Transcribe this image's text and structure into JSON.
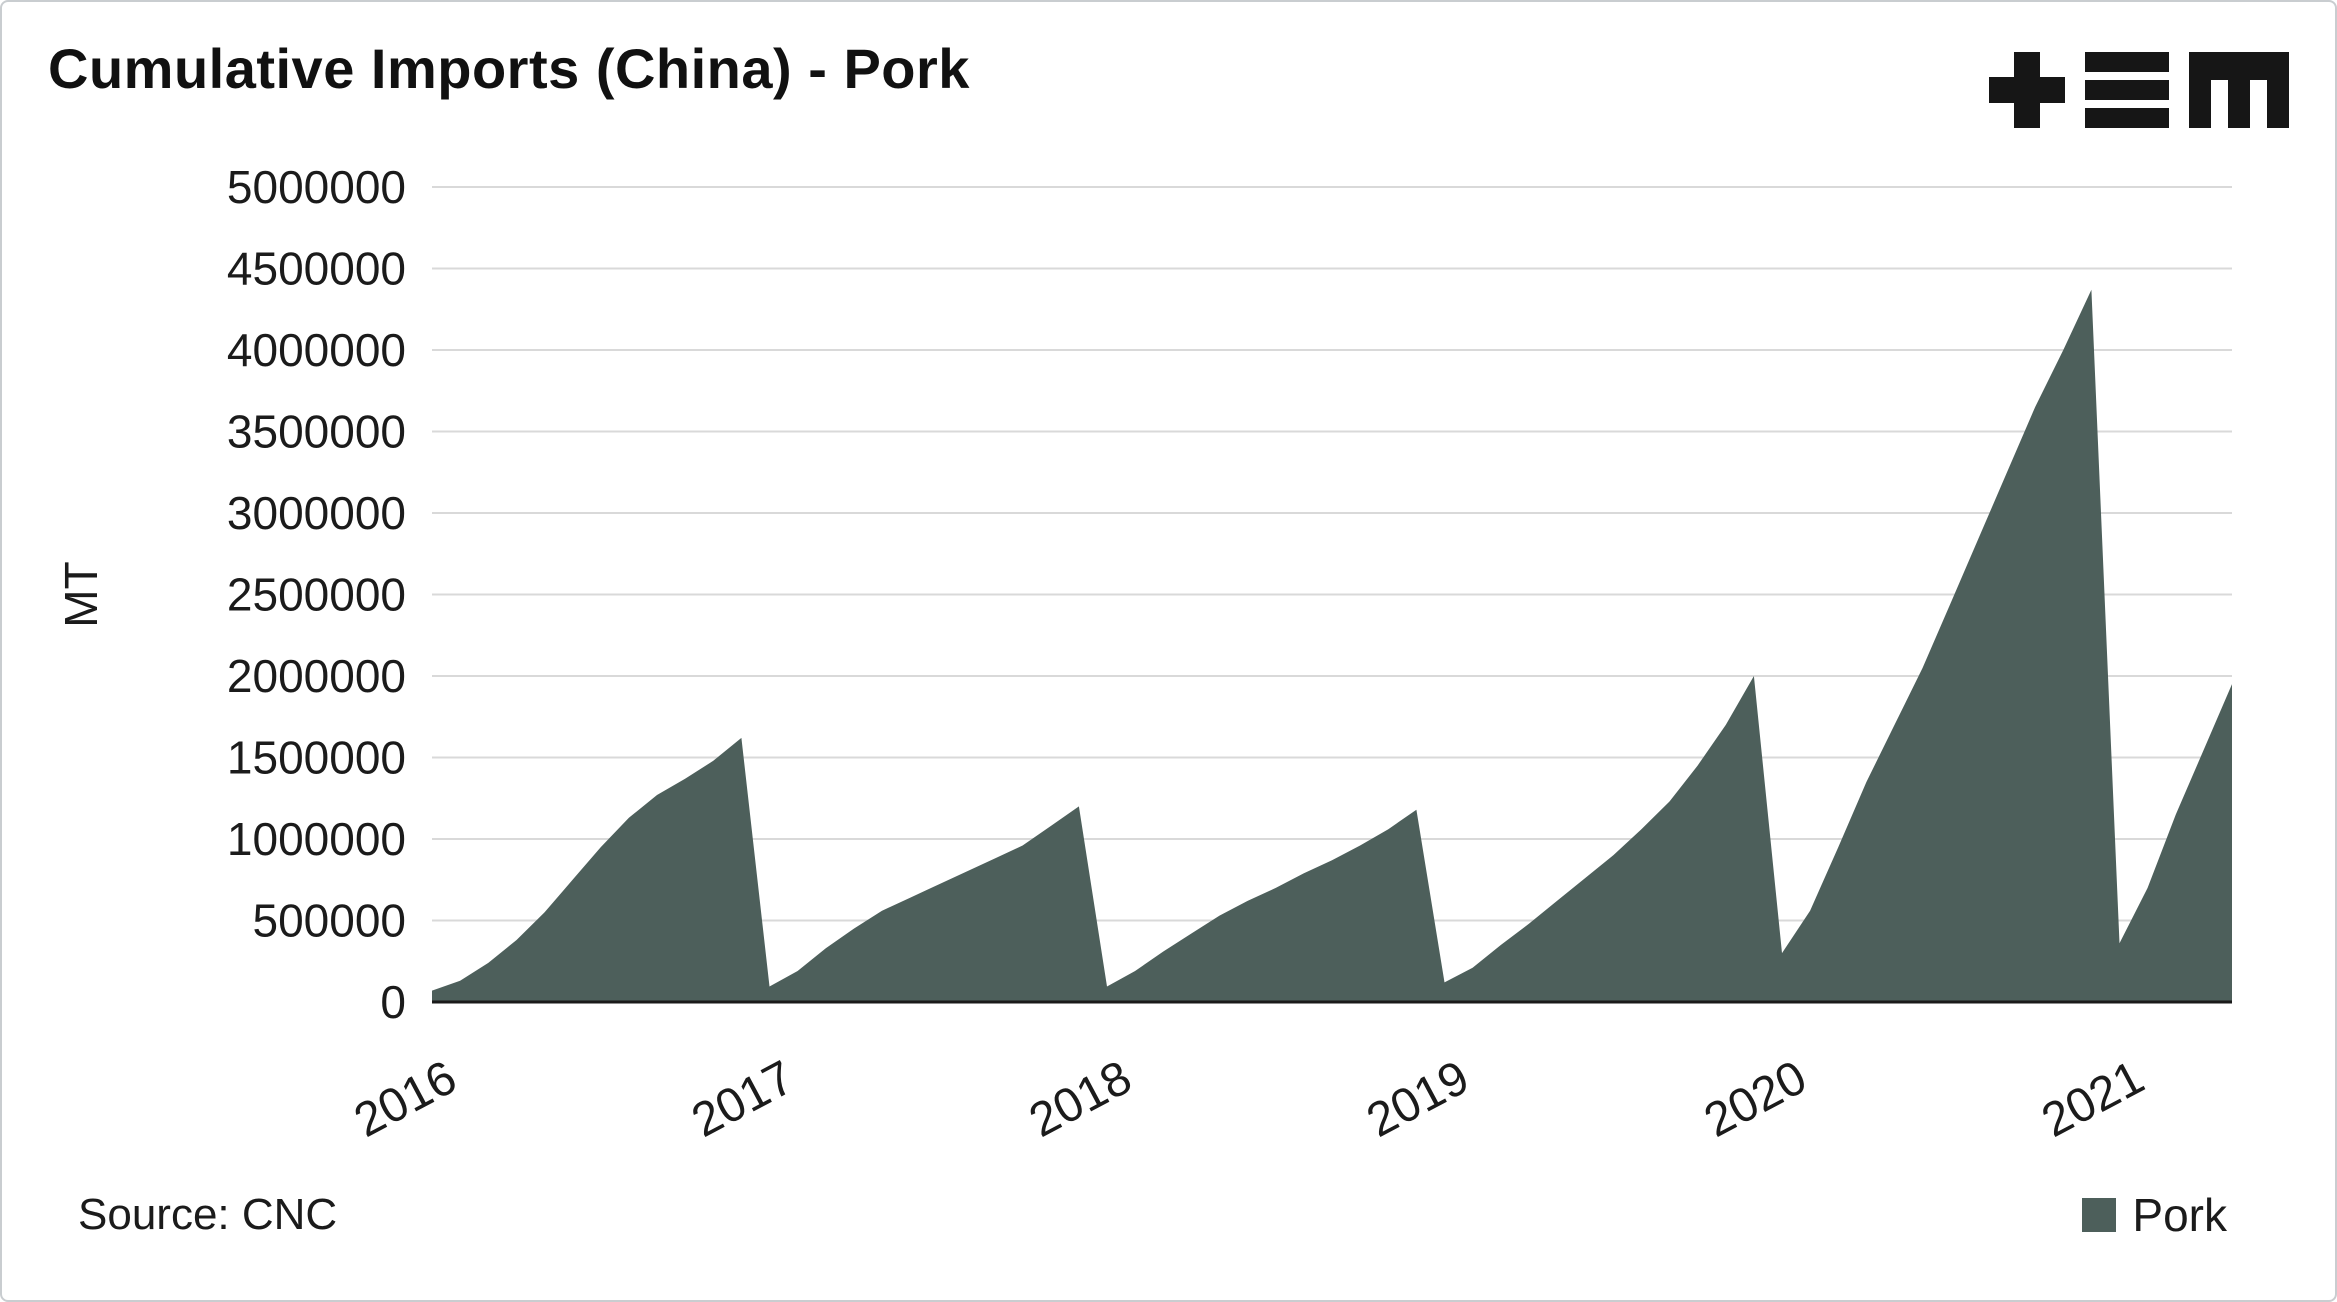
{
  "title": "Cumulative Imports (China) - Pork",
  "source": {
    "text": "Source: CNC"
  },
  "legend": {
    "items": [
      {
        "label": "Pork",
        "color": "#4d5f5b"
      }
    ]
  },
  "icons": {
    "logo": "plus-bars-m-brand-logo"
  },
  "colors": {
    "area": "#4d5f5b",
    "grid": "#d9d9d9",
    "axis": "#1a1a1a",
    "text": "#1b1b1b",
    "logo": "#161616",
    "border": "#c9cdd0",
    "background": "#ffffff"
  },
  "chart_data": {
    "type": "area",
    "title": "Cumulative Imports (China) - Pork",
    "xlabel": "",
    "ylabel": "MT",
    "ylim": [
      0,
      5000000
    ],
    "ytick_step": 500000,
    "grid": "horizontal",
    "legend_position": "bottom-right",
    "x_tick_labels": [
      "2016",
      "2017",
      "2018",
      "2019",
      "2020",
      "2021"
    ],
    "x_unit": "month (cumulative within each year, chart ends May 2021)",
    "series": [
      {
        "name": "Pork",
        "color": "#4d5f5b",
        "unit": "MT",
        "data": [
          {
            "year": 2016,
            "monthly_cumulative": [
              70000,
              130000,
              240000,
              380000,
              550000,
              750000,
              950000,
              1130000,
              1270000,
              1370000,
              1480000,
              1620000
            ]
          },
          {
            "year": 2017,
            "monthly_cumulative": [
              95000,
              190000,
              330000,
              450000,
              560000,
              640000,
              720000,
              800000,
              880000,
              960000,
              1080000,
              1200000
            ]
          },
          {
            "year": 2018,
            "monthly_cumulative": [
              95000,
              190000,
              310000,
              420000,
              530000,
              620000,
              700000,
              790000,
              870000,
              960000,
              1060000,
              1180000
            ]
          },
          {
            "year": 2019,
            "monthly_cumulative": [
              120000,
              210000,
              350000,
              480000,
              620000,
              760000,
              900000,
              1060000,
              1230000,
              1450000,
              1700000,
              2000000
            ]
          },
          {
            "year": 2020,
            "monthly_cumulative": [
              300000,
              560000,
              950000,
              1350000,
              1700000,
              2050000,
              2450000,
              2850000,
              3250000,
              3650000,
              4000000,
              4370000
            ]
          },
          {
            "year": 2021,
            "monthly_cumulative": [
              360000,
              700000,
              1150000,
              1550000,
              1950000
            ]
          }
        ]
      }
    ]
  }
}
